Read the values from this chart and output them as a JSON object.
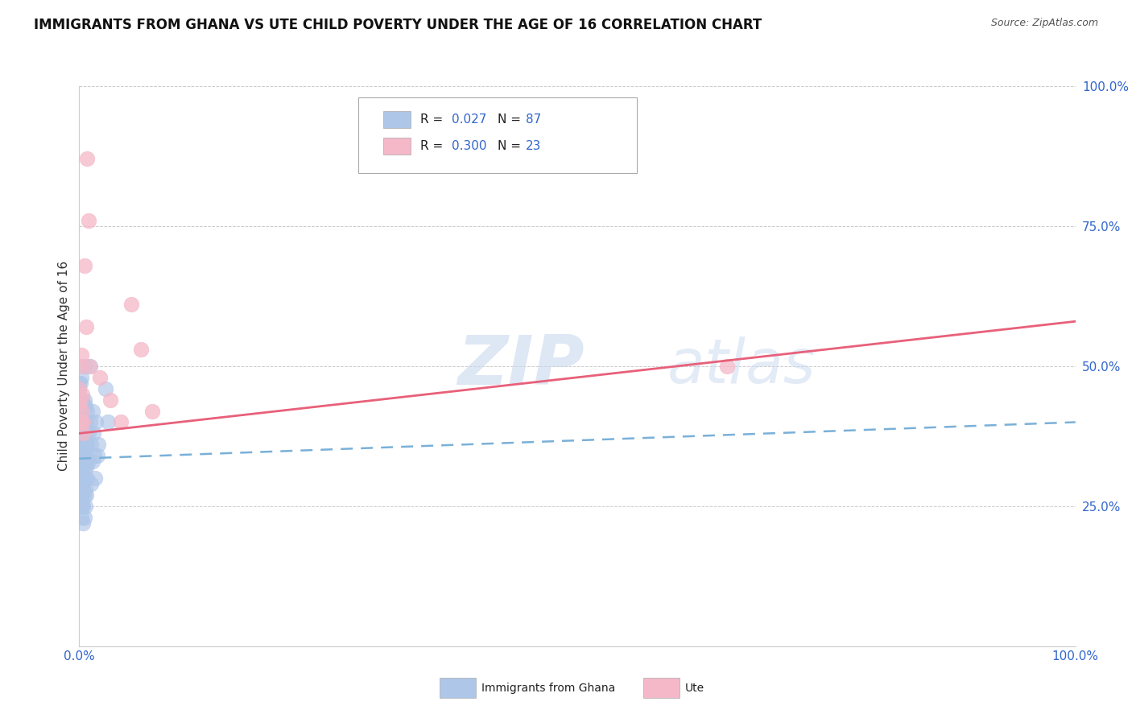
{
  "title": "IMMIGRANTS FROM GHANA VS UTE CHILD POVERTY UNDER THE AGE OF 16 CORRELATION CHART",
  "source": "Source: ZipAtlas.com",
  "ylabel": "Child Poverty Under the Age of 16",
  "watermark_zip": "ZIP",
  "watermark_atlas": "atlas",
  "background_color": "#ffffff",
  "grid_color": "#cccccc",
  "ghana_color": "#aec6e8",
  "ute_color": "#f4b8c8",
  "ghana_line_color": "#7ab0d8",
  "ute_line_color": "#e8607a",
  "blue_text": "#3366cc",
  "legend_R_color": "#000000",
  "ghana_points": [
    [
      0.0,
      0.47
    ],
    [
      0.0,
      0.46
    ],
    [
      0.0,
      0.44
    ],
    [
      0.0,
      0.43
    ],
    [
      0.0,
      0.42
    ],
    [
      0.001,
      0.47
    ],
    [
      0.001,
      0.44
    ],
    [
      0.001,
      0.42
    ],
    [
      0.001,
      0.4
    ],
    [
      0.001,
      0.38
    ],
    [
      0.001,
      0.37
    ],
    [
      0.001,
      0.36
    ],
    [
      0.001,
      0.34
    ],
    [
      0.001,
      0.33
    ],
    [
      0.001,
      0.32
    ],
    [
      0.002,
      0.48
    ],
    [
      0.002,
      0.44
    ],
    [
      0.002,
      0.42
    ],
    [
      0.002,
      0.4
    ],
    [
      0.002,
      0.38
    ],
    [
      0.002,
      0.36
    ],
    [
      0.002,
      0.34
    ],
    [
      0.002,
      0.32
    ],
    [
      0.002,
      0.3
    ],
    [
      0.002,
      0.28
    ],
    [
      0.002,
      0.27
    ],
    [
      0.002,
      0.25
    ],
    [
      0.002,
      0.23
    ],
    [
      0.003,
      0.44
    ],
    [
      0.003,
      0.4
    ],
    [
      0.003,
      0.38
    ],
    [
      0.003,
      0.36
    ],
    [
      0.003,
      0.34
    ],
    [
      0.003,
      0.32
    ],
    [
      0.003,
      0.3
    ],
    [
      0.003,
      0.29
    ],
    [
      0.003,
      0.27
    ],
    [
      0.003,
      0.25
    ],
    [
      0.004,
      0.43
    ],
    [
      0.004,
      0.4
    ],
    [
      0.004,
      0.38
    ],
    [
      0.004,
      0.36
    ],
    [
      0.004,
      0.34
    ],
    [
      0.004,
      0.33
    ],
    [
      0.004,
      0.3
    ],
    [
      0.004,
      0.28
    ],
    [
      0.004,
      0.25
    ],
    [
      0.004,
      0.22
    ],
    [
      0.005,
      0.5
    ],
    [
      0.005,
      0.44
    ],
    [
      0.005,
      0.4
    ],
    [
      0.005,
      0.36
    ],
    [
      0.005,
      0.33
    ],
    [
      0.005,
      0.3
    ],
    [
      0.005,
      0.27
    ],
    [
      0.005,
      0.23
    ],
    [
      0.006,
      0.43
    ],
    [
      0.006,
      0.38
    ],
    [
      0.006,
      0.35
    ],
    [
      0.006,
      0.32
    ],
    [
      0.006,
      0.28
    ],
    [
      0.006,
      0.25
    ],
    [
      0.007,
      0.4
    ],
    [
      0.007,
      0.36
    ],
    [
      0.007,
      0.32
    ],
    [
      0.007,
      0.27
    ],
    [
      0.008,
      0.42
    ],
    [
      0.008,
      0.36
    ],
    [
      0.008,
      0.3
    ],
    [
      0.009,
      0.38
    ],
    [
      0.009,
      0.33
    ],
    [
      0.011,
      0.5
    ],
    [
      0.011,
      0.4
    ],
    [
      0.012,
      0.36
    ],
    [
      0.012,
      0.29
    ],
    [
      0.013,
      0.42
    ],
    [
      0.013,
      0.33
    ],
    [
      0.014,
      0.38
    ],
    [
      0.015,
      0.34
    ],
    [
      0.016,
      0.3
    ],
    [
      0.017,
      0.4
    ],
    [
      0.018,
      0.34
    ],
    [
      0.019,
      0.36
    ],
    [
      0.026,
      0.46
    ],
    [
      0.029,
      0.4
    ]
  ],
  "ute_points": [
    [
      0.0,
      0.46
    ],
    [
      0.0,
      0.43
    ],
    [
      0.0,
      0.4
    ],
    [
      0.001,
      0.5
    ],
    [
      0.001,
      0.44
    ],
    [
      0.001,
      0.4
    ],
    [
      0.002,
      0.52
    ],
    [
      0.003,
      0.45
    ],
    [
      0.003,
      0.42
    ],
    [
      0.004,
      0.4
    ],
    [
      0.004,
      0.38
    ],
    [
      0.005,
      0.68
    ],
    [
      0.007,
      0.57
    ],
    [
      0.008,
      0.87
    ],
    [
      0.009,
      0.76
    ],
    [
      0.01,
      0.5
    ],
    [
      0.021,
      0.48
    ],
    [
      0.031,
      0.44
    ],
    [
      0.042,
      0.4
    ],
    [
      0.052,
      0.61
    ],
    [
      0.062,
      0.53
    ],
    [
      0.073,
      0.42
    ],
    [
      0.65,
      0.5
    ]
  ],
  "ghana_intercept": 0.335,
  "ghana_slope": 0.065,
  "ute_intercept": 0.38,
  "ute_slope": 0.2
}
